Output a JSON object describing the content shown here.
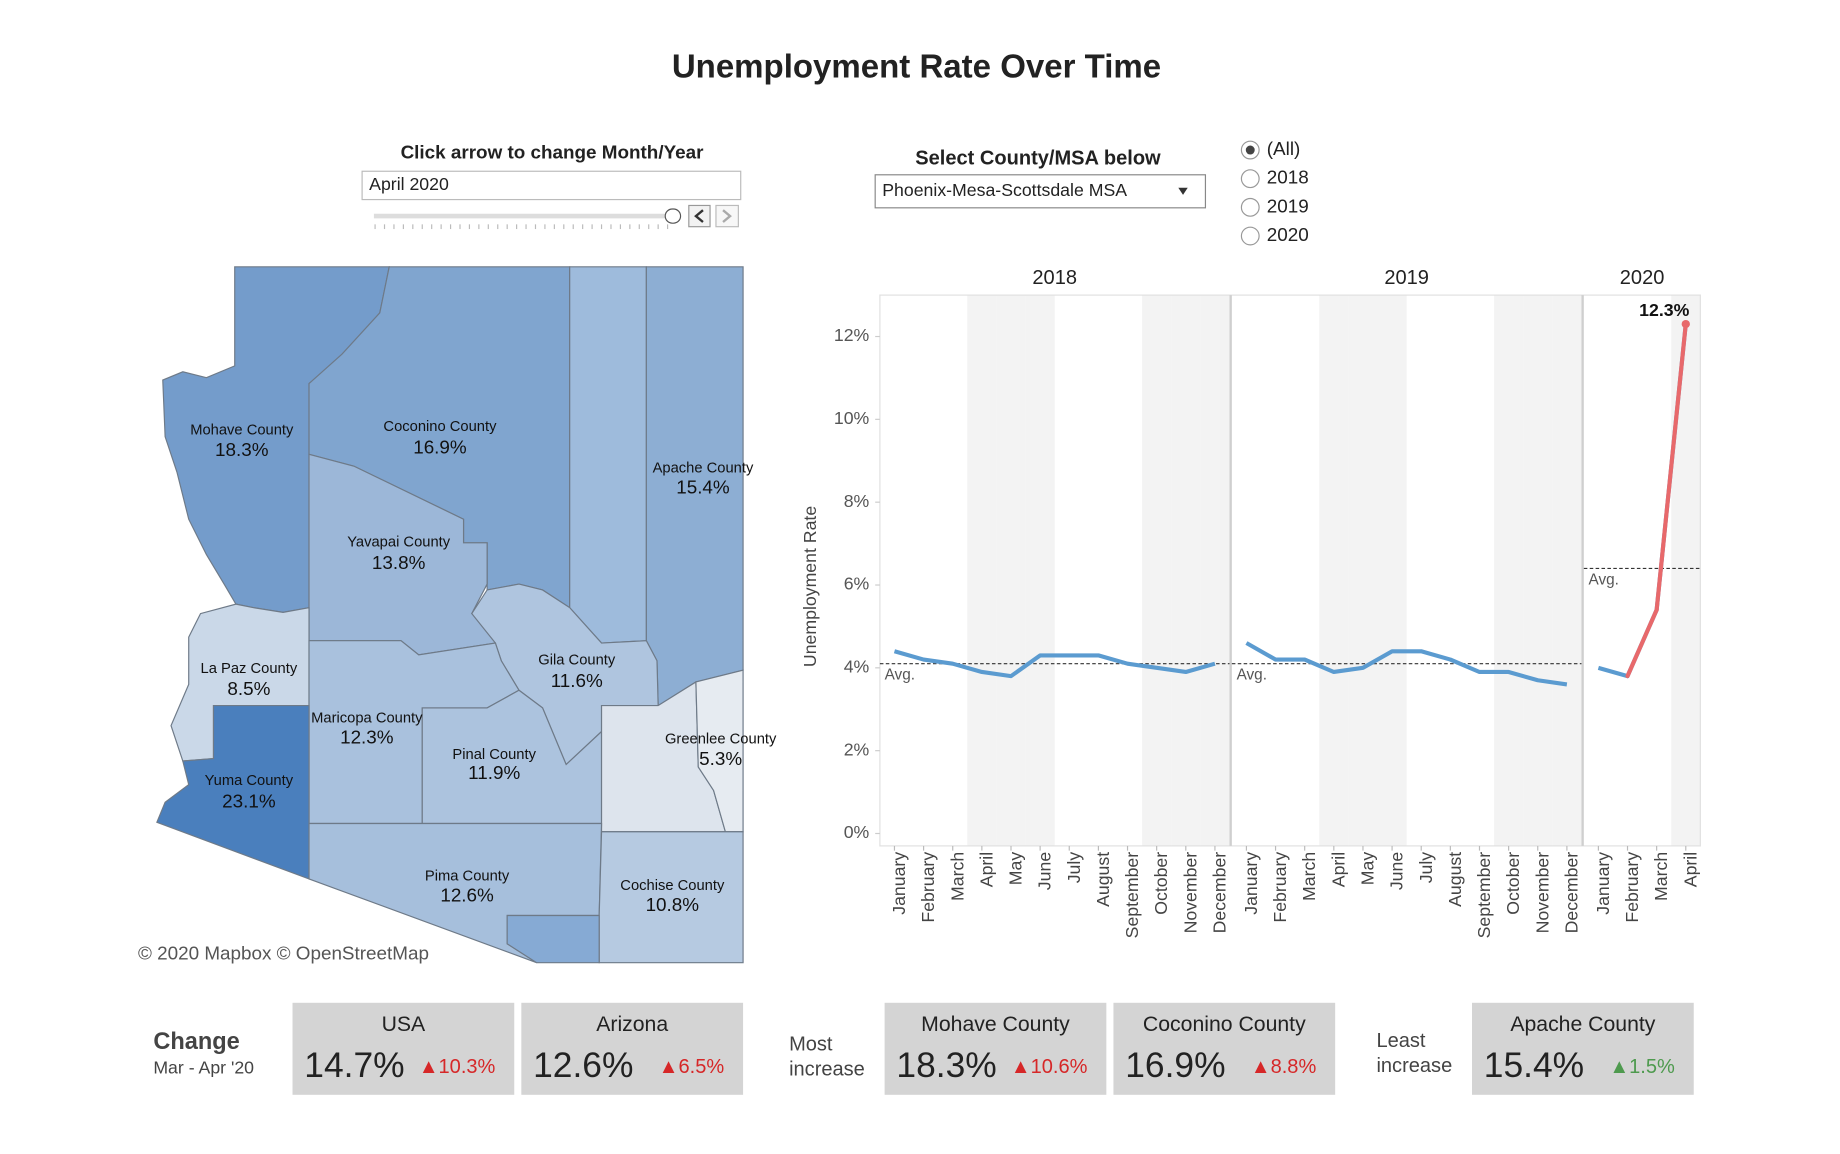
{
  "title": "Unemployment Rate Over Time",
  "controls": {
    "month_year": {
      "label": "Click arrow to change Month/Year",
      "value": "April 2020"
    },
    "county_select": {
      "label": "Select County/MSA below",
      "value": "Phoenix-Mesa-Scottsdale MSA"
    },
    "year_filter": {
      "options": [
        "(All)",
        "2018",
        "2019",
        "2020"
      ],
      "selected": 0
    }
  },
  "map": {
    "attribution": "© 2020 Mapbox © OpenStreetMap",
    "counties": [
      {
        "name": "Mohave County",
        "value": 18.3,
        "value_label": "18.3%"
      },
      {
        "name": "Coconino County",
        "value": 16.9,
        "value_label": "16.9%"
      },
      {
        "name": "Apache County",
        "value": 15.4,
        "value_label": "15.4%"
      },
      {
        "name": "Yavapai County",
        "value": 13.8,
        "value_label": "13.8%"
      },
      {
        "name": "La Paz County",
        "value": 8.5,
        "value_label": "8.5%"
      },
      {
        "name": "Gila County",
        "value": 11.6,
        "value_label": "11.6%"
      },
      {
        "name": "Maricopa County",
        "value": 12.3,
        "value_label": "12.3%"
      },
      {
        "name": "Pinal County",
        "value": 11.9,
        "value_label": "11.9%"
      },
      {
        "name": "Greenlee County",
        "value": 5.3,
        "value_label": "5.3%"
      },
      {
        "name": "Yuma County",
        "value": 23.1,
        "value_label": "23.1%"
      },
      {
        "name": "Pima County",
        "value": 12.6,
        "value_label": "12.6%"
      },
      {
        "name": "Cochise County",
        "value": 10.8,
        "value_label": "10.8%"
      }
    ]
  },
  "chart_data": {
    "type": "line",
    "y_label": "Unemployment Rate",
    "color": "#5b9bd0",
    "rise_color": "#e8696b",
    "avg_label": "Avg.",
    "annotation": "12.3%",
    "ylim": [
      -0.3,
      13
    ],
    "yticks": [
      {
        "value": 0,
        "label": "0%"
      },
      {
        "value": 2,
        "label": "2%"
      },
      {
        "value": 4,
        "label": "4%"
      },
      {
        "value": 6,
        "label": "6%"
      },
      {
        "value": 8,
        "label": "8%"
      },
      {
        "value": 10,
        "label": "10%"
      },
      {
        "value": 12,
        "label": "12%"
      }
    ],
    "grid": false,
    "panels": [
      {
        "name": "2018",
        "average": 4.1,
        "categories": [
          "January",
          "February",
          "March",
          "April",
          "May",
          "June",
          "July",
          "August",
          "September",
          "October",
          "November",
          "December"
        ],
        "values": [
          4.4,
          4.2,
          4.1,
          3.9,
          3.8,
          4.3,
          4.3,
          4.3,
          4.1,
          4.0,
          3.9,
          4.1
        ]
      },
      {
        "name": "2019",
        "average": 4.1,
        "categories": [
          "January",
          "February",
          "March",
          "April",
          "May",
          "June",
          "July",
          "August",
          "September",
          "October",
          "November",
          "December"
        ],
        "values": [
          4.6,
          4.2,
          4.2,
          3.9,
          4.0,
          4.4,
          4.4,
          4.2,
          3.9,
          3.9,
          3.7,
          3.6
        ]
      },
      {
        "name": "2020",
        "average": 6.4,
        "categories": [
          "January",
          "February",
          "March",
          "April"
        ],
        "values": [
          4.0,
          3.8,
          5.4,
          12.3
        ]
      }
    ]
  },
  "kpis": {
    "title": "Change",
    "subtitle": "Mar - Apr '20",
    "most_increase": [
      "Most",
      "increase"
    ],
    "least_increase": [
      "Least",
      "increase"
    ],
    "cards": [
      {
        "name": "USA",
        "value": "14.7%",
        "change": "▲10.3%",
        "change_color": "#d62728"
      },
      {
        "name": "Arizona",
        "value": "12.6%",
        "change": "▲6.5%",
        "change_color": "#d62728"
      },
      {
        "name": "Mohave County",
        "value": "18.3%",
        "change": "▲10.6%",
        "change_color": "#d62728"
      },
      {
        "name": "Coconino County",
        "value": "16.9%",
        "change": "▲8.8%",
        "change_color": "#d62728"
      },
      {
        "name": "Apache County",
        "value": "15.4%",
        "change": "▲1.5%",
        "change_color": "#4e9a4e"
      }
    ]
  }
}
